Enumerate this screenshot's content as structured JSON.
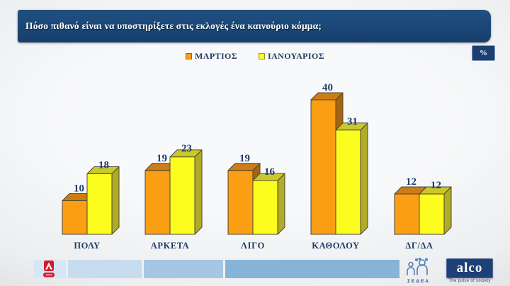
{
  "title": "Πόσο πιθανό είναι να υποστηρίξετε στις εκλογές ένα καινούριο κόμμα;",
  "unit_label": "%",
  "chart_data": {
    "type": "bar",
    "style": "3d-grouped-columns",
    "title": "Πόσο πιθανό είναι να υποστηρίξετε στις εκλογές ένα καινούριο κόμμα;",
    "unit": "%",
    "categories": [
      "ΠΟΛΥ",
      "ΑΡΚΕΤΑ",
      "ΛΙΓΟ",
      "ΚΑΘΟΛΟΥ",
      "ΔΓ/ΔΑ"
    ],
    "series": [
      {
        "name": "ΜΑΡΤΙΟΣ",
        "values": [
          10,
          19,
          19,
          40,
          12
        ],
        "color": "#FA9E14",
        "top_color": "#CE7D12",
        "side_color": "#A96410"
      },
      {
        "name": "ΙΑΝΟΥΑΡΙΟΣ",
        "values": [
          18,
          23,
          16,
          31,
          12
        ],
        "color": "#FCFC1E",
        "top_color": "#CBC82B",
        "side_color": "#B0AC28"
      }
    ],
    "value_labels_shown": true,
    "ylim": [
      0,
      45
    ],
    "grid": false,
    "legend_position": "top-center"
  },
  "footer": {
    "sedea_label": "ΣΕΔΕΑ",
    "alco_name": "alco",
    "alco_tagline": "The pulse of society"
  },
  "colors": {
    "banner_navy": "#1B4878",
    "text_navy": "#223C66",
    "badge_navy": "#1C3F72",
    "footer_segments": [
      "#D8E6F4",
      "#C7DCEF",
      "#A7C6E3",
      "#88B3D9"
    ],
    "alpha_red": "#D6182E",
    "sedea_blue": "#4D80B2",
    "alco_navy": "#1E4076"
  }
}
